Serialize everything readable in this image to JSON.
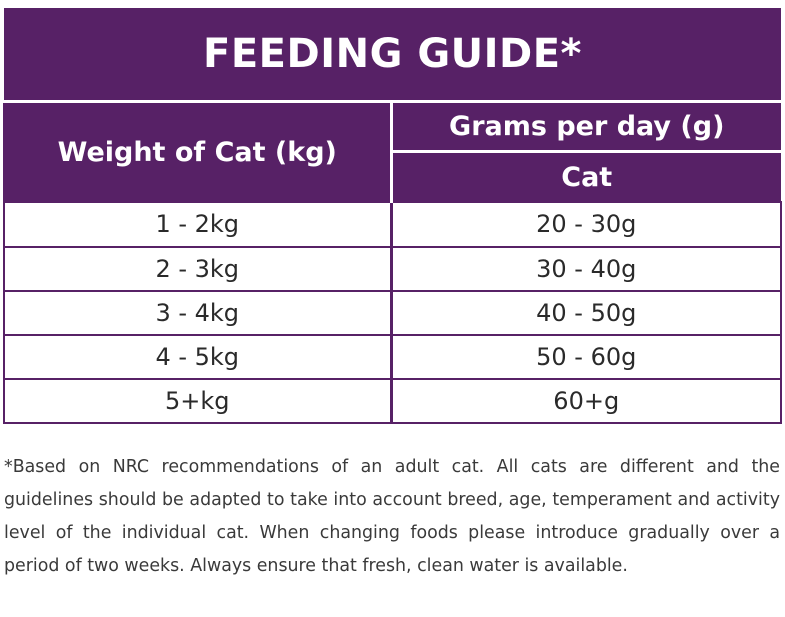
{
  "title": "FEEDING GUIDE*",
  "columns": {
    "weight_header": "Weight of Cat (kg)",
    "grams_header": "Grams per day (g)",
    "animal_header": "Cat"
  },
  "rows": [
    {
      "weight": "1 - 2kg",
      "grams": "20 - 30g"
    },
    {
      "weight": "2 - 3kg",
      "grams": "30 - 40g"
    },
    {
      "weight": "3 - 4kg",
      "grams": "40 - 50g"
    },
    {
      "weight": "4 - 5kg",
      "grams": "50 - 60g"
    },
    {
      "weight": "5+kg",
      "grams": "60+g"
    }
  ],
  "footnote": "*Based on NRC recommendations of an adult cat. All cats are different and the guidelines should be adapted to take into account breed, age, temperament and activity level of the individual cat. When changing foods please introduce gradually over a period of two weeks. Always ensure that fresh, clean water is available.",
  "colors": {
    "brand_purple": "#572166",
    "text": "#2a2a2a"
  }
}
